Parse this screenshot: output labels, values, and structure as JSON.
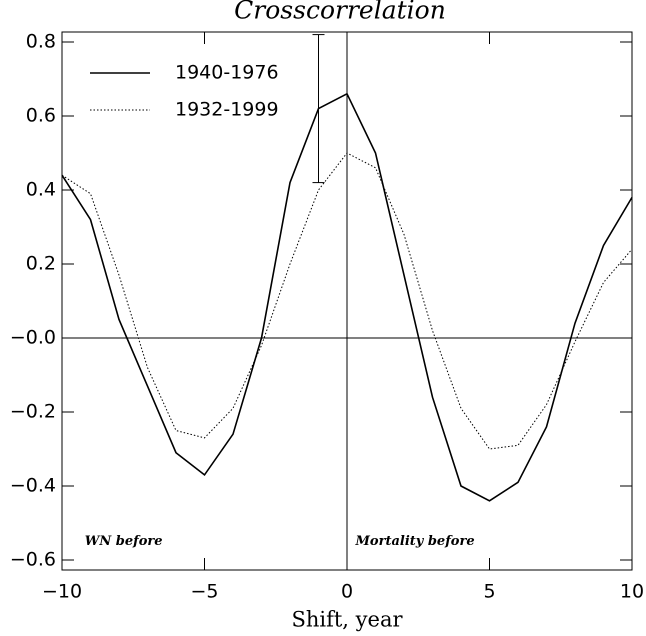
{
  "chart_data": {
    "type": "line",
    "title": "Crosscorrelation",
    "x_label": "Shift, year",
    "x": [
      -10,
      -9,
      -8,
      -7,
      -6,
      -5,
      -4,
      -3,
      -2,
      -1,
      0,
      1,
      2,
      3,
      4,
      5,
      6,
      7,
      8,
      9,
      10
    ],
    "series": [
      {
        "name": "1940-1976",
        "color": "#000000",
        "style": "solid",
        "values": [
          0.44,
          0.32,
          0.05,
          -0.13,
          -0.31,
          -0.37,
          -0.26,
          0.0,
          0.42,
          0.62,
          0.66,
          0.5,
          0.17,
          -0.16,
          -0.4,
          -0.44,
          -0.39,
          -0.24,
          0.04,
          0.25,
          0.38
        ]
      },
      {
        "name": "1932-1999",
        "color": "#000000",
        "style": "dotted",
        "values": [
          0.44,
          0.39,
          0.17,
          -0.08,
          -0.25,
          -0.27,
          -0.19,
          -0.02,
          0.2,
          0.4,
          0.5,
          0.46,
          0.28,
          0.02,
          -0.19,
          -0.3,
          -0.29,
          -0.18,
          -0.01,
          0.15,
          0.24
        ]
      }
    ],
    "error_bar": {
      "x": -1,
      "value": 0.62,
      "error": 0.2
    },
    "reference_lines": {
      "x": 0,
      "y": 0
    },
    "annotations": [
      {
        "text": "WN before",
        "x": -9.2,
        "y": -0.55
      },
      {
        "text": "Mortality before",
        "x": 0.3,
        "y": -0.55
      }
    ],
    "xlim": [
      -10,
      10
    ],
    "ylim": [
      -0.627,
      0.827
    ],
    "xticks": [
      {
        "value": -10,
        "label": "−10"
      },
      {
        "value": -5,
        "label": "−5"
      },
      0,
      5,
      10
    ],
    "yticks": [
      {
        "value": -0.6,
        "label": "−0.6"
      },
      {
        "value": -0.4,
        "label": "−0.4"
      },
      {
        "value": -0.2,
        "label": "−0.2"
      },
      {
        "value": 0,
        "label": "−0.0"
      },
      0.2,
      0.4,
      0.6,
      0.8
    ],
    "legend": "upper left"
  }
}
